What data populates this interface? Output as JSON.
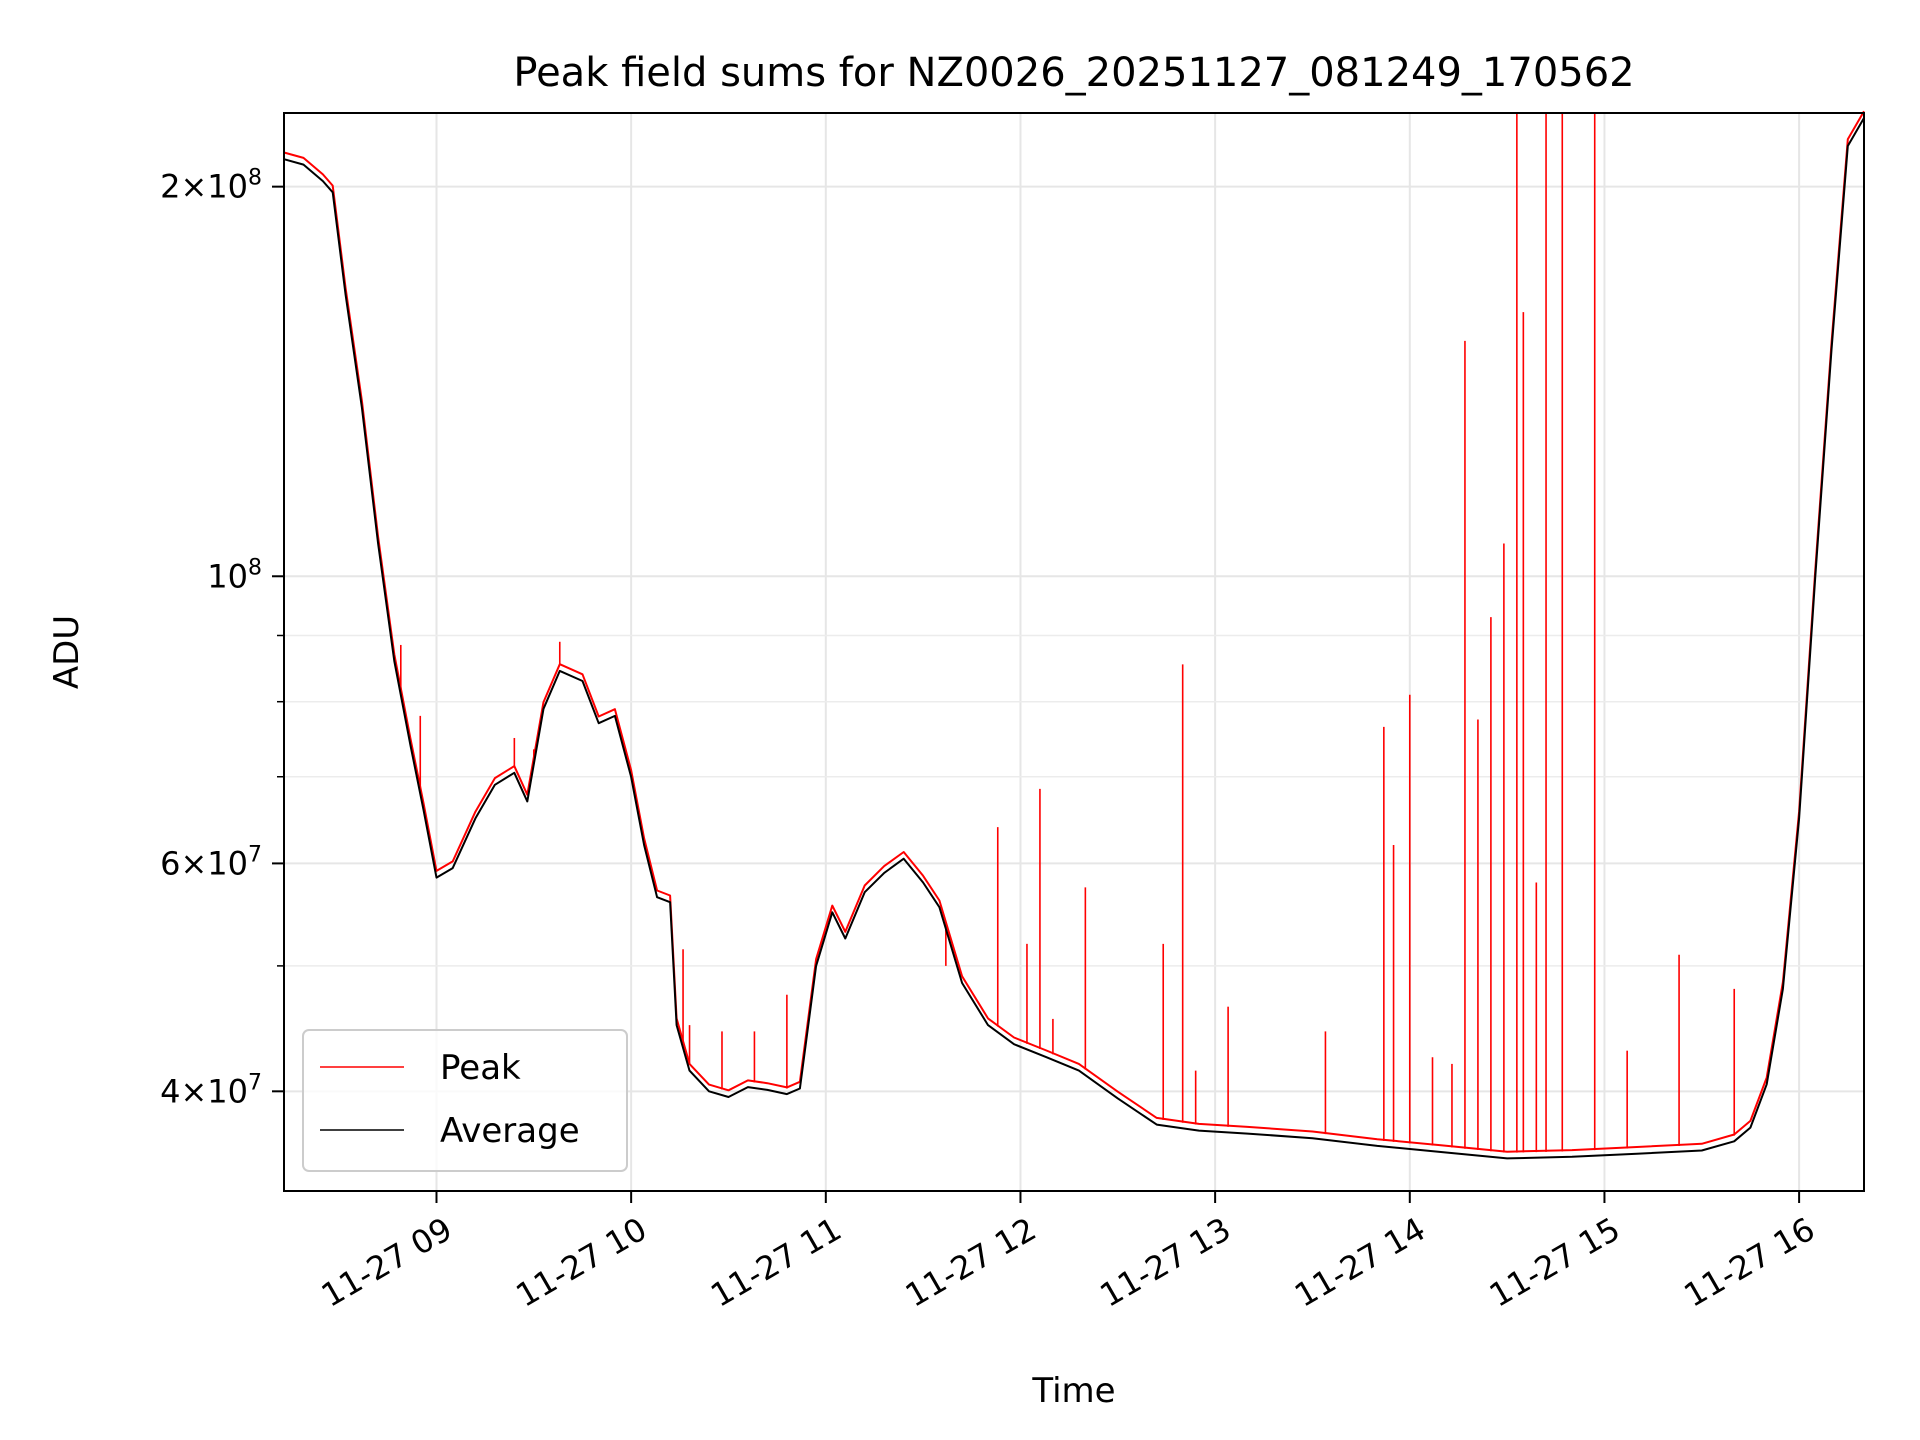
{
  "chart_data": {
    "type": "line",
    "title": "Peak field sums for NZ0026_20251127_081249_170562",
    "xlabel": "Time",
    "ylabel": "ADU",
    "y_scale": "log",
    "xlim": [
      "2025-11-27T08:13",
      "2025-11-27T16:20"
    ],
    "ylim": [
      33500000,
      228000000
    ],
    "grid": true,
    "legend_position": "lower-left",
    "x_ticks": [
      {
        "t": "2025-11-27T09:00",
        "label": "11-27 09"
      },
      {
        "t": "2025-11-27T10:00",
        "label": "11-27 10"
      },
      {
        "t": "2025-11-27T11:00",
        "label": "11-27 11"
      },
      {
        "t": "2025-11-27T12:00",
        "label": "11-27 12"
      },
      {
        "t": "2025-11-27T13:00",
        "label": "11-27 13"
      },
      {
        "t": "2025-11-27T14:00",
        "label": "11-27 14"
      },
      {
        "t": "2025-11-27T15:00",
        "label": "11-27 15"
      },
      {
        "t": "2025-11-27T16:00",
        "label": "11-27 16"
      }
    ],
    "y_ticks": [
      {
        "v": 40000000,
        "mant": "4",
        "exp": "7"
      },
      {
        "v": 60000000,
        "mant": "6",
        "exp": "7"
      },
      {
        "v": 100000000,
        "mant": "",
        "exp": "8"
      },
      {
        "v": 200000000,
        "mant": "2",
        "exp": "8"
      }
    ],
    "series": [
      {
        "name": "Average",
        "color": "#000000",
        "points": [
          [
            "2025-11-27T08:13",
            210000000
          ],
          [
            "2025-11-27T08:19",
            208000000
          ],
          [
            "2025-11-27T08:25",
            202000000
          ],
          [
            "2025-11-27T08:28",
            198000000
          ],
          [
            "2025-11-27T08:32",
            165000000
          ],
          [
            "2025-11-27T08:37",
            135000000
          ],
          [
            "2025-11-27T08:42",
            106000000
          ],
          [
            "2025-11-27T08:47",
            86000000
          ],
          [
            "2025-11-27T08:52",
            74000000
          ],
          [
            "2025-11-27T08:56",
            66000000
          ],
          [
            "2025-11-27T09:00",
            58500000
          ],
          [
            "2025-11-27T09:05",
            59500000
          ],
          [
            "2025-11-27T09:12",
            65000000
          ],
          [
            "2025-11-27T09:18",
            69000000
          ],
          [
            "2025-11-27T09:24",
            70500000
          ],
          [
            "2025-11-27T09:28",
            67000000
          ],
          [
            "2025-11-27T09:33",
            79000000
          ],
          [
            "2025-11-27T09:38",
            84500000
          ],
          [
            "2025-11-27T09:45",
            83000000
          ],
          [
            "2025-11-27T09:50",
            77000000
          ],
          [
            "2025-11-27T09:55",
            78000000
          ],
          [
            "2025-11-27T10:00",
            70000000
          ],
          [
            "2025-11-27T10:04",
            62000000
          ],
          [
            "2025-11-27T10:08",
            56500000
          ],
          [
            "2025-11-27T10:12",
            56000000
          ],
          [
            "2025-11-27T10:14",
            45000000
          ],
          [
            "2025-11-27T10:18",
            41500000
          ],
          [
            "2025-11-27T10:24",
            40000000
          ],
          [
            "2025-11-27T10:30",
            39600000
          ],
          [
            "2025-11-27T10:36",
            40300000
          ],
          [
            "2025-11-27T10:42",
            40100000
          ],
          [
            "2025-11-27T10:48",
            39800000
          ],
          [
            "2025-11-27T10:52",
            40200000
          ],
          [
            "2025-11-27T10:57",
            50000000
          ],
          [
            "2025-11-27T11:02",
            55000000
          ],
          [
            "2025-11-27T11:06",
            52500000
          ],
          [
            "2025-11-27T11:12",
            57000000
          ],
          [
            "2025-11-27T11:18",
            59000000
          ],
          [
            "2025-11-27T11:24",
            60500000
          ],
          [
            "2025-11-27T11:30",
            58000000
          ],
          [
            "2025-11-27T11:35",
            55500000
          ],
          [
            "2025-11-27T11:42",
            48500000
          ],
          [
            "2025-11-27T11:50",
            45000000
          ],
          [
            "2025-11-27T11:58",
            43500000
          ],
          [
            "2025-11-27T12:08",
            42500000
          ],
          [
            "2025-11-27T12:18",
            41500000
          ],
          [
            "2025-11-27T12:30",
            39500000
          ],
          [
            "2025-11-27T12:42",
            37700000
          ],
          [
            "2025-11-27T12:55",
            37300000
          ],
          [
            "2025-11-27T13:10",
            37100000
          ],
          [
            "2025-11-27T13:30",
            36800000
          ],
          [
            "2025-11-27T13:50",
            36300000
          ],
          [
            "2025-11-27T14:10",
            35900000
          ],
          [
            "2025-11-27T14:30",
            35500000
          ],
          [
            "2025-11-27T14:50",
            35600000
          ],
          [
            "2025-11-27T15:10",
            35800000
          ],
          [
            "2025-11-27T15:30",
            36000000
          ],
          [
            "2025-11-27T15:40",
            36600000
          ],
          [
            "2025-11-27T15:45",
            37500000
          ],
          [
            "2025-11-27T15:50",
            40500000
          ],
          [
            "2025-11-27T15:55",
            48000000
          ],
          [
            "2025-11-27T16:00",
            65000000
          ],
          [
            "2025-11-27T16:05",
            100000000
          ],
          [
            "2025-11-27T16:10",
            150000000
          ],
          [
            "2025-11-27T16:15",
            215000000
          ],
          [
            "2025-11-27T16:20",
            226000000
          ]
        ]
      },
      {
        "name": "Peak",
        "color": "#ff0000",
        "spikes": [
          [
            "2025-11-27T08:49",
            88500000
          ],
          [
            "2025-11-27T08:55",
            78000000
          ],
          [
            "2025-11-27T09:24",
            75000000
          ],
          [
            "2025-11-27T09:30",
            73500000
          ],
          [
            "2025-11-27T09:38",
            89000000
          ],
          [
            "2025-11-27T10:16",
            51500000
          ],
          [
            "2025-11-27T10:18",
            45000000
          ],
          [
            "2025-11-27T10:28",
            44500000
          ],
          [
            "2025-11-27T10:38",
            44500000
          ],
          [
            "2025-11-27T10:48",
            47500000
          ],
          [
            "2025-11-27T11:37",
            50000000
          ],
          [
            "2025-11-27T11:53",
            64000000
          ],
          [
            "2025-11-27T12:02",
            52000000
          ],
          [
            "2025-11-27T12:06",
            68500000
          ],
          [
            "2025-11-27T12:10",
            45500000
          ],
          [
            "2025-11-27T12:20",
            57500000
          ],
          [
            "2025-11-27T12:44",
            52000000
          ],
          [
            "2025-11-27T12:50",
            85500000
          ],
          [
            "2025-11-27T12:54",
            41500000
          ],
          [
            "2025-11-27T13:04",
            46500000
          ],
          [
            "2025-11-27T13:34",
            44500000
          ],
          [
            "2025-11-27T13:52",
            76500000
          ],
          [
            "2025-11-27T13:55",
            62000000
          ],
          [
            "2025-11-27T14:00",
            81000000
          ],
          [
            "2025-11-27T14:07",
            42500000
          ],
          [
            "2025-11-27T14:13",
            42000000
          ],
          [
            "2025-11-27T14:17",
            152000000
          ],
          [
            "2025-11-27T14:21",
            77500000
          ],
          [
            "2025-11-27T14:25",
            93000000
          ],
          [
            "2025-11-27T14:29",
            106000000
          ],
          [
            "2025-11-27T14:33",
            228000000
          ],
          [
            "2025-11-27T14:35",
            160000000
          ],
          [
            "2025-11-27T14:39",
            58000000
          ],
          [
            "2025-11-27T14:42",
            228000000
          ],
          [
            "2025-11-27T14:47",
            228000000
          ],
          [
            "2025-11-27T14:57",
            228000000
          ],
          [
            "2025-11-27T15:07",
            43000000
          ],
          [
            "2025-11-27T15:23",
            51000000
          ],
          [
            "2025-11-27T15:40",
            48000000
          ]
        ]
      }
    ]
  }
}
